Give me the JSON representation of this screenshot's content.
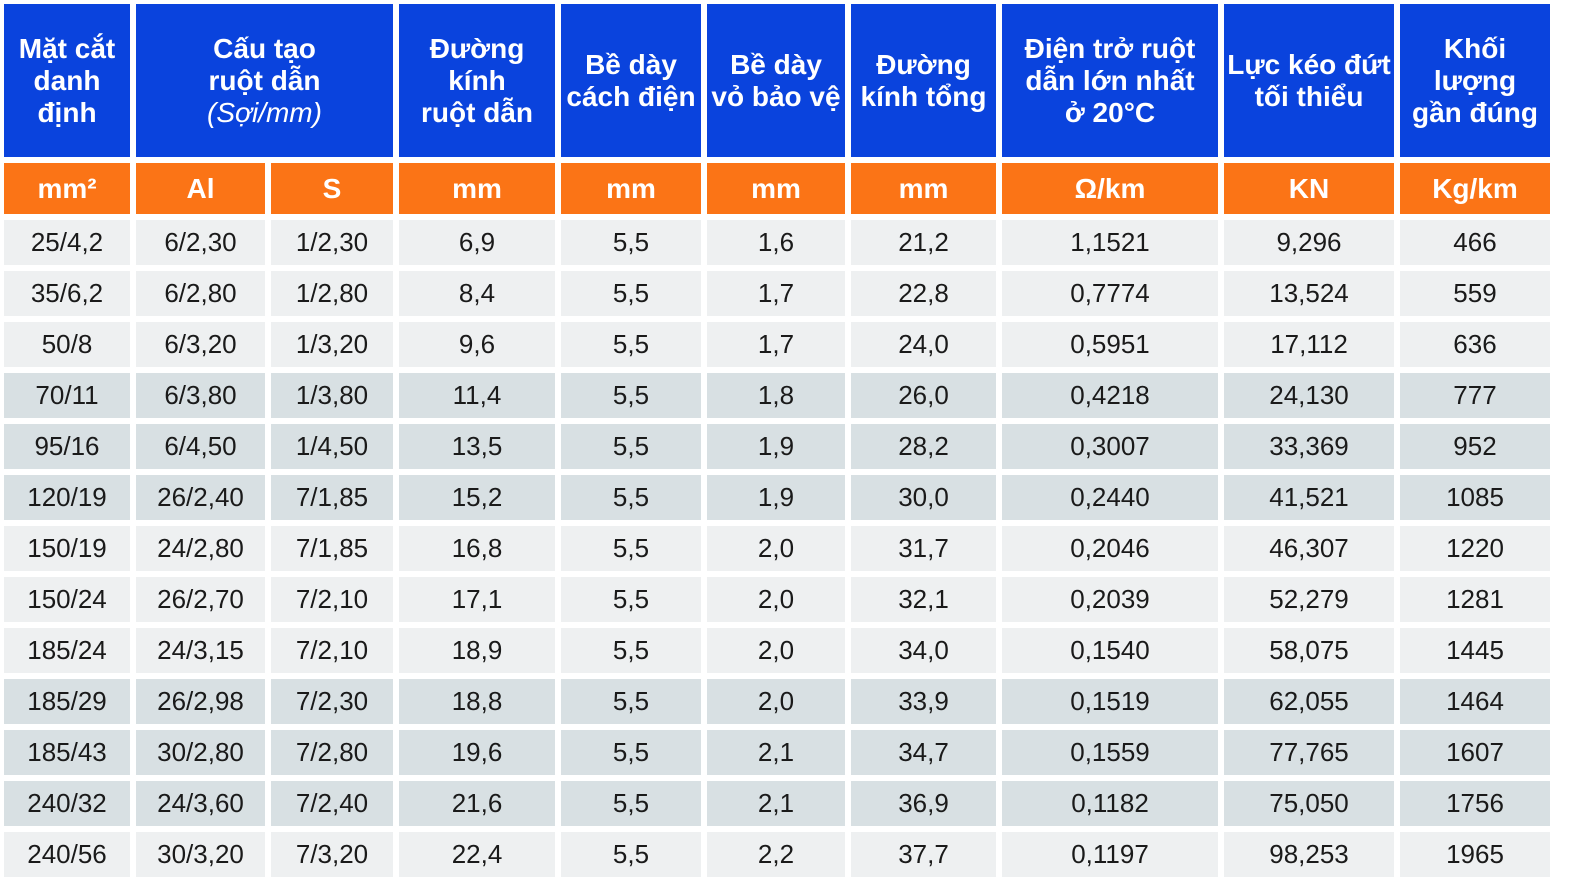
{
  "headers": {
    "section": [
      "Mặt cắt",
      "danh",
      "định"
    ],
    "conductor": [
      "Cấu tạo",
      "ruột dẫn"
    ],
    "conductor_sub": "(Sợi/mm)",
    "diameter": [
      "Đường",
      "kính",
      "ruột dẫn"
    ],
    "insulation": [
      "Bề dày",
      "cách điện"
    ],
    "sheath": [
      "Bề dày",
      "vỏ bảo vệ"
    ],
    "overall": [
      "Đường",
      "kính tổng"
    ],
    "resistance": [
      "Điện trở ruột",
      "dẫn lớn nhất",
      "ở 20°C"
    ],
    "tensile": [
      "Lực kéo đứt",
      "tối thiểu"
    ],
    "weight": [
      "Khối lượng",
      "gần đúng"
    ]
  },
  "units": [
    "mm²",
    "Al",
    "S",
    "mm",
    "mm",
    "mm",
    "mm",
    "Ω/km",
    "KN",
    "Kg/km"
  ],
  "colors": {
    "header": "#0a43dd",
    "unit_row": "#fb7416",
    "row_light": "#eef0f1",
    "row_dark": "#d8e0e3"
  },
  "rows": [
    [
      "25/4,2",
      "6/2,30",
      "1/2,30",
      "6,9",
      "5,5",
      "1,6",
      "21,2",
      "1,1521",
      "9,296",
      "466"
    ],
    [
      "35/6,2",
      "6/2,80",
      "1/2,80",
      "8,4",
      "5,5",
      "1,7",
      "22,8",
      "0,7774",
      "13,524",
      "559"
    ],
    [
      "50/8",
      "6/3,20",
      "1/3,20",
      "9,6",
      "5,5",
      "1,7",
      "24,0",
      "0,5951",
      "17,112",
      "636"
    ],
    [
      "70/11",
      "6/3,80",
      "1/3,80",
      "11,4",
      "5,5",
      "1,8",
      "26,0",
      "0,4218",
      "24,130",
      "777"
    ],
    [
      "95/16",
      "6/4,50",
      "1/4,50",
      "13,5",
      "5,5",
      "1,9",
      "28,2",
      "0,3007",
      "33,369",
      "952"
    ],
    [
      "120/19",
      "26/2,40",
      "7/1,85",
      "15,2",
      "5,5",
      "1,9",
      "30,0",
      "0,2440",
      "41,521",
      "1085"
    ],
    [
      "150/19",
      "24/2,80",
      "7/1,85",
      "16,8",
      "5,5",
      "2,0",
      "31,7",
      "0,2046",
      "46,307",
      "1220"
    ],
    [
      "150/24",
      "26/2,70",
      "7/2,10",
      "17,1",
      "5,5",
      "2,0",
      "32,1",
      "0,2039",
      "52,279",
      "1281"
    ],
    [
      "185/24",
      "24/3,15",
      "7/2,10",
      "18,9",
      "5,5",
      "2,0",
      "34,0",
      "0,1540",
      "58,075",
      "1445"
    ],
    [
      "185/29",
      "26/2,98",
      "7/2,30",
      "18,8",
      "5,5",
      "2,0",
      "33,9",
      "0,1519",
      "62,055",
      "1464"
    ],
    [
      "185/43",
      "30/2,80",
      "7/2,80",
      "19,6",
      "5,5",
      "2,1",
      "34,7",
      "0,1559",
      "77,765",
      "1607"
    ],
    [
      "240/32",
      "24/3,60",
      "7/2,40",
      "21,6",
      "5,5",
      "2,1",
      "36,9",
      "0,1182",
      "75,050",
      "1756"
    ],
    [
      "240/56",
      "30/3,20",
      "7/3,20",
      "22,4",
      "5,5",
      "2,2",
      "37,7",
      "0,1197",
      "98,253",
      "1965"
    ]
  ]
}
